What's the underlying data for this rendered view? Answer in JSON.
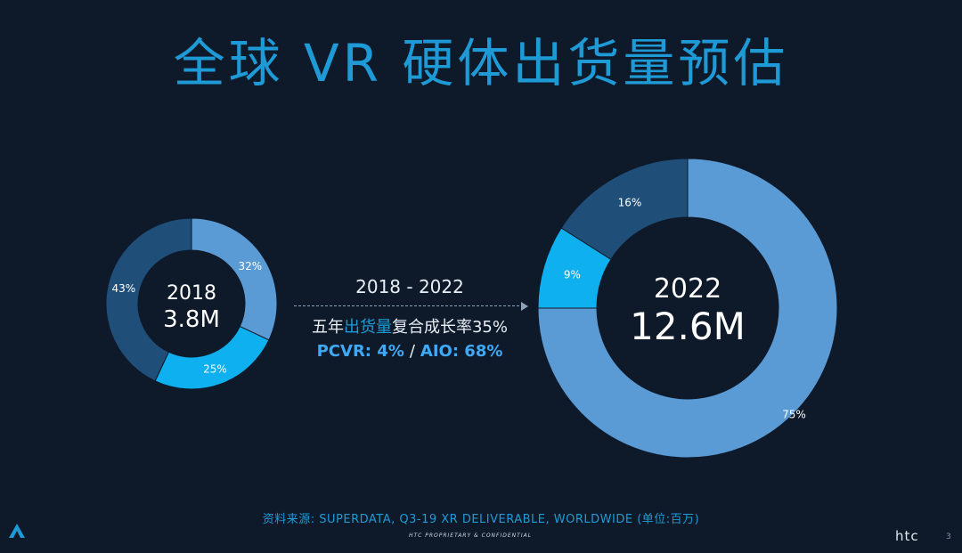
{
  "title": "全球 VR 硬体出货量预估",
  "chart_data": [
    {
      "type": "donut",
      "center_year": "2018",
      "center_value": "3.8M",
      "slices": [
        {
          "label": "32%",
          "value": 32,
          "color": "#5b9bd5"
        },
        {
          "label": "25%",
          "value": 25,
          "color": "#0fb0f0"
        },
        {
          "label": "43%",
          "value": 43,
          "color": "#1f4e79"
        }
      ]
    },
    {
      "type": "donut",
      "center_year": "2022",
      "center_value": "12.6M",
      "slices": [
        {
          "label": "75%",
          "value": 75,
          "color": "#5b9bd5"
        },
        {
          "label": "9%",
          "value": 9,
          "color": "#0fb0f0"
        },
        {
          "label": "16%",
          "value": 16,
          "color": "#1f4e79"
        }
      ]
    }
  ],
  "middle": {
    "period": "2018 - 2022",
    "cagr_prefix": "五年",
    "cagr_highlight": "出货量",
    "cagr_suffix": "复合成长率35%",
    "pcvr": "PCVR: 4%",
    "separator": "/",
    "aio": "AIO: 68%"
  },
  "footer": {
    "source": "资料来源: SUPERDATA, Q3-19 XR DELIVERABLE, WORLDWIDE (单位:百万)",
    "confidential": "HTC PROPRIETARY & CONFIDENTIAL",
    "logo_text": "htc",
    "page_number": "3"
  },
  "colors": {
    "background": "#0e1a2a",
    "accent": "#1e9ad6"
  }
}
